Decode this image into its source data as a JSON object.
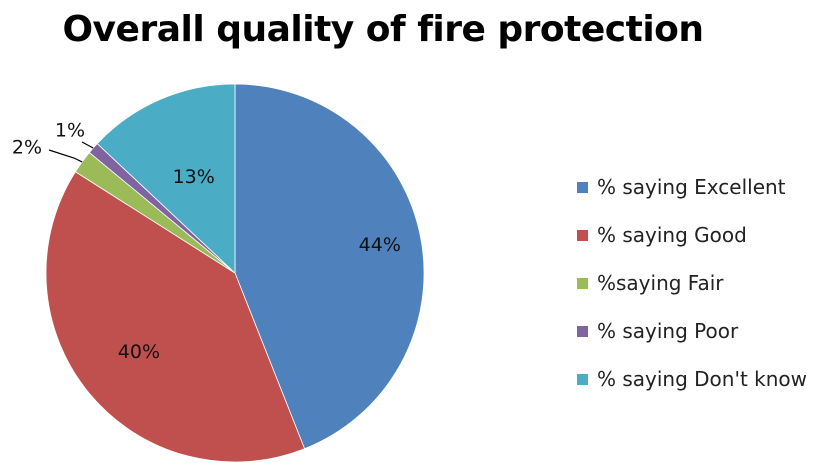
{
  "chart_data": {
    "type": "pie",
    "title": "Overall quality of fire protection",
    "categories": [
      "% saying Excellent",
      "% saying Good",
      "%saying Fair",
      "% saying Poor",
      "% saying Don't know"
    ],
    "values": [
      44,
      40,
      2,
      1,
      13
    ],
    "labels": [
      "44%",
      "40%",
      "2%",
      "1%",
      "13%"
    ],
    "colors": [
      "#4F81BD",
      "#C0504D",
      "#9BBB59",
      "#8064A2",
      "#4BACC6"
    ],
    "start_angle": "12 o'clock",
    "direction": "clockwise",
    "legend_position": "right"
  }
}
